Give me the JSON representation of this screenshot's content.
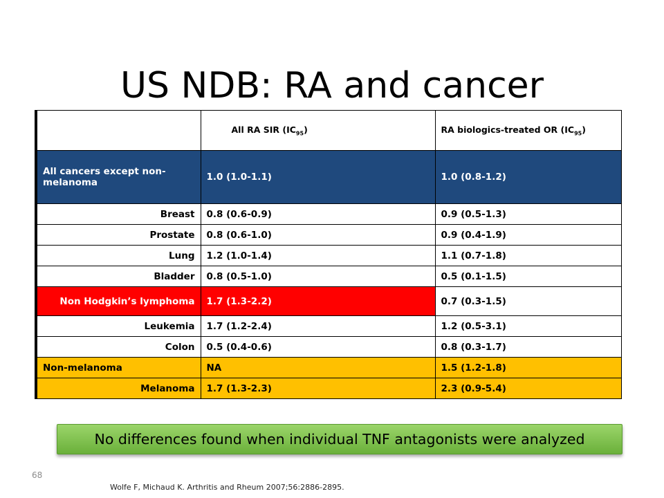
{
  "slide": {
    "title": "US NDB: RA and cancer",
    "banner": "No differences found when individual TNF antagonists were analyzed",
    "page_number": "68",
    "citation": "Wolfe F, Michaud K. Arthritis and Rheum 2007;56:2886-2895."
  },
  "table": {
    "headers": {
      "col1": "",
      "col2_main": "All RA SIR (IC",
      "col2_sub": "95",
      "col2_end": ")",
      "col3_main": "RA biologics-treated OR (IC",
      "col3_sub": "95",
      "col3_end": ")"
    },
    "rows": [
      {
        "label": "All cancers except non-melanoma",
        "sir": "1.0 (1.0-1.1)",
        "or": "1.0 (0.8-1.2)"
      },
      {
        "label": "Breast",
        "sir": "0.8 (0.6-0.9)",
        "or": "0.9 (0.5-1.3)"
      },
      {
        "label": "Prostate",
        "sir": "0.8 (0.6-1.0)",
        "or": "0.9 (0.4-1.9)"
      },
      {
        "label": "Lung",
        "sir": "1.2 (1.0-1.4)",
        "or": "1.1 (0.7-1.8)"
      },
      {
        "label": "Bladder",
        "sir": "0.8 (0.5-1.0)",
        "or": "0.5 (0.1-1.5)"
      },
      {
        "label": "Non Hodgkin’s lymphoma",
        "sir": "1.7 (1.3-2.2)",
        "or": "0.7 (0.3-1.5)"
      },
      {
        "label": "Leukemia",
        "sir": "1.7 (1.2-2.4)",
        "or": "1.2 (0.5-3.1)"
      },
      {
        "label": "Colon",
        "sir": "0.5 (0.4-0.6)",
        "or": "0.8 (0.3-1.7)"
      },
      {
        "label": "Non-melanoma",
        "sir": "NA",
        "or": "1.5 (1.2-1.8)"
      },
      {
        "label": "Melanoma",
        "sir": "1.7 (1.3-2.3)",
        "or": "2.3 (0.9-5.4)"
      }
    ]
  },
  "colors": {
    "blue_row": "#1f497d",
    "red_highlight": "#ff0000",
    "orange_rows": "#ffc000",
    "banner_green": "#7cc24a"
  }
}
